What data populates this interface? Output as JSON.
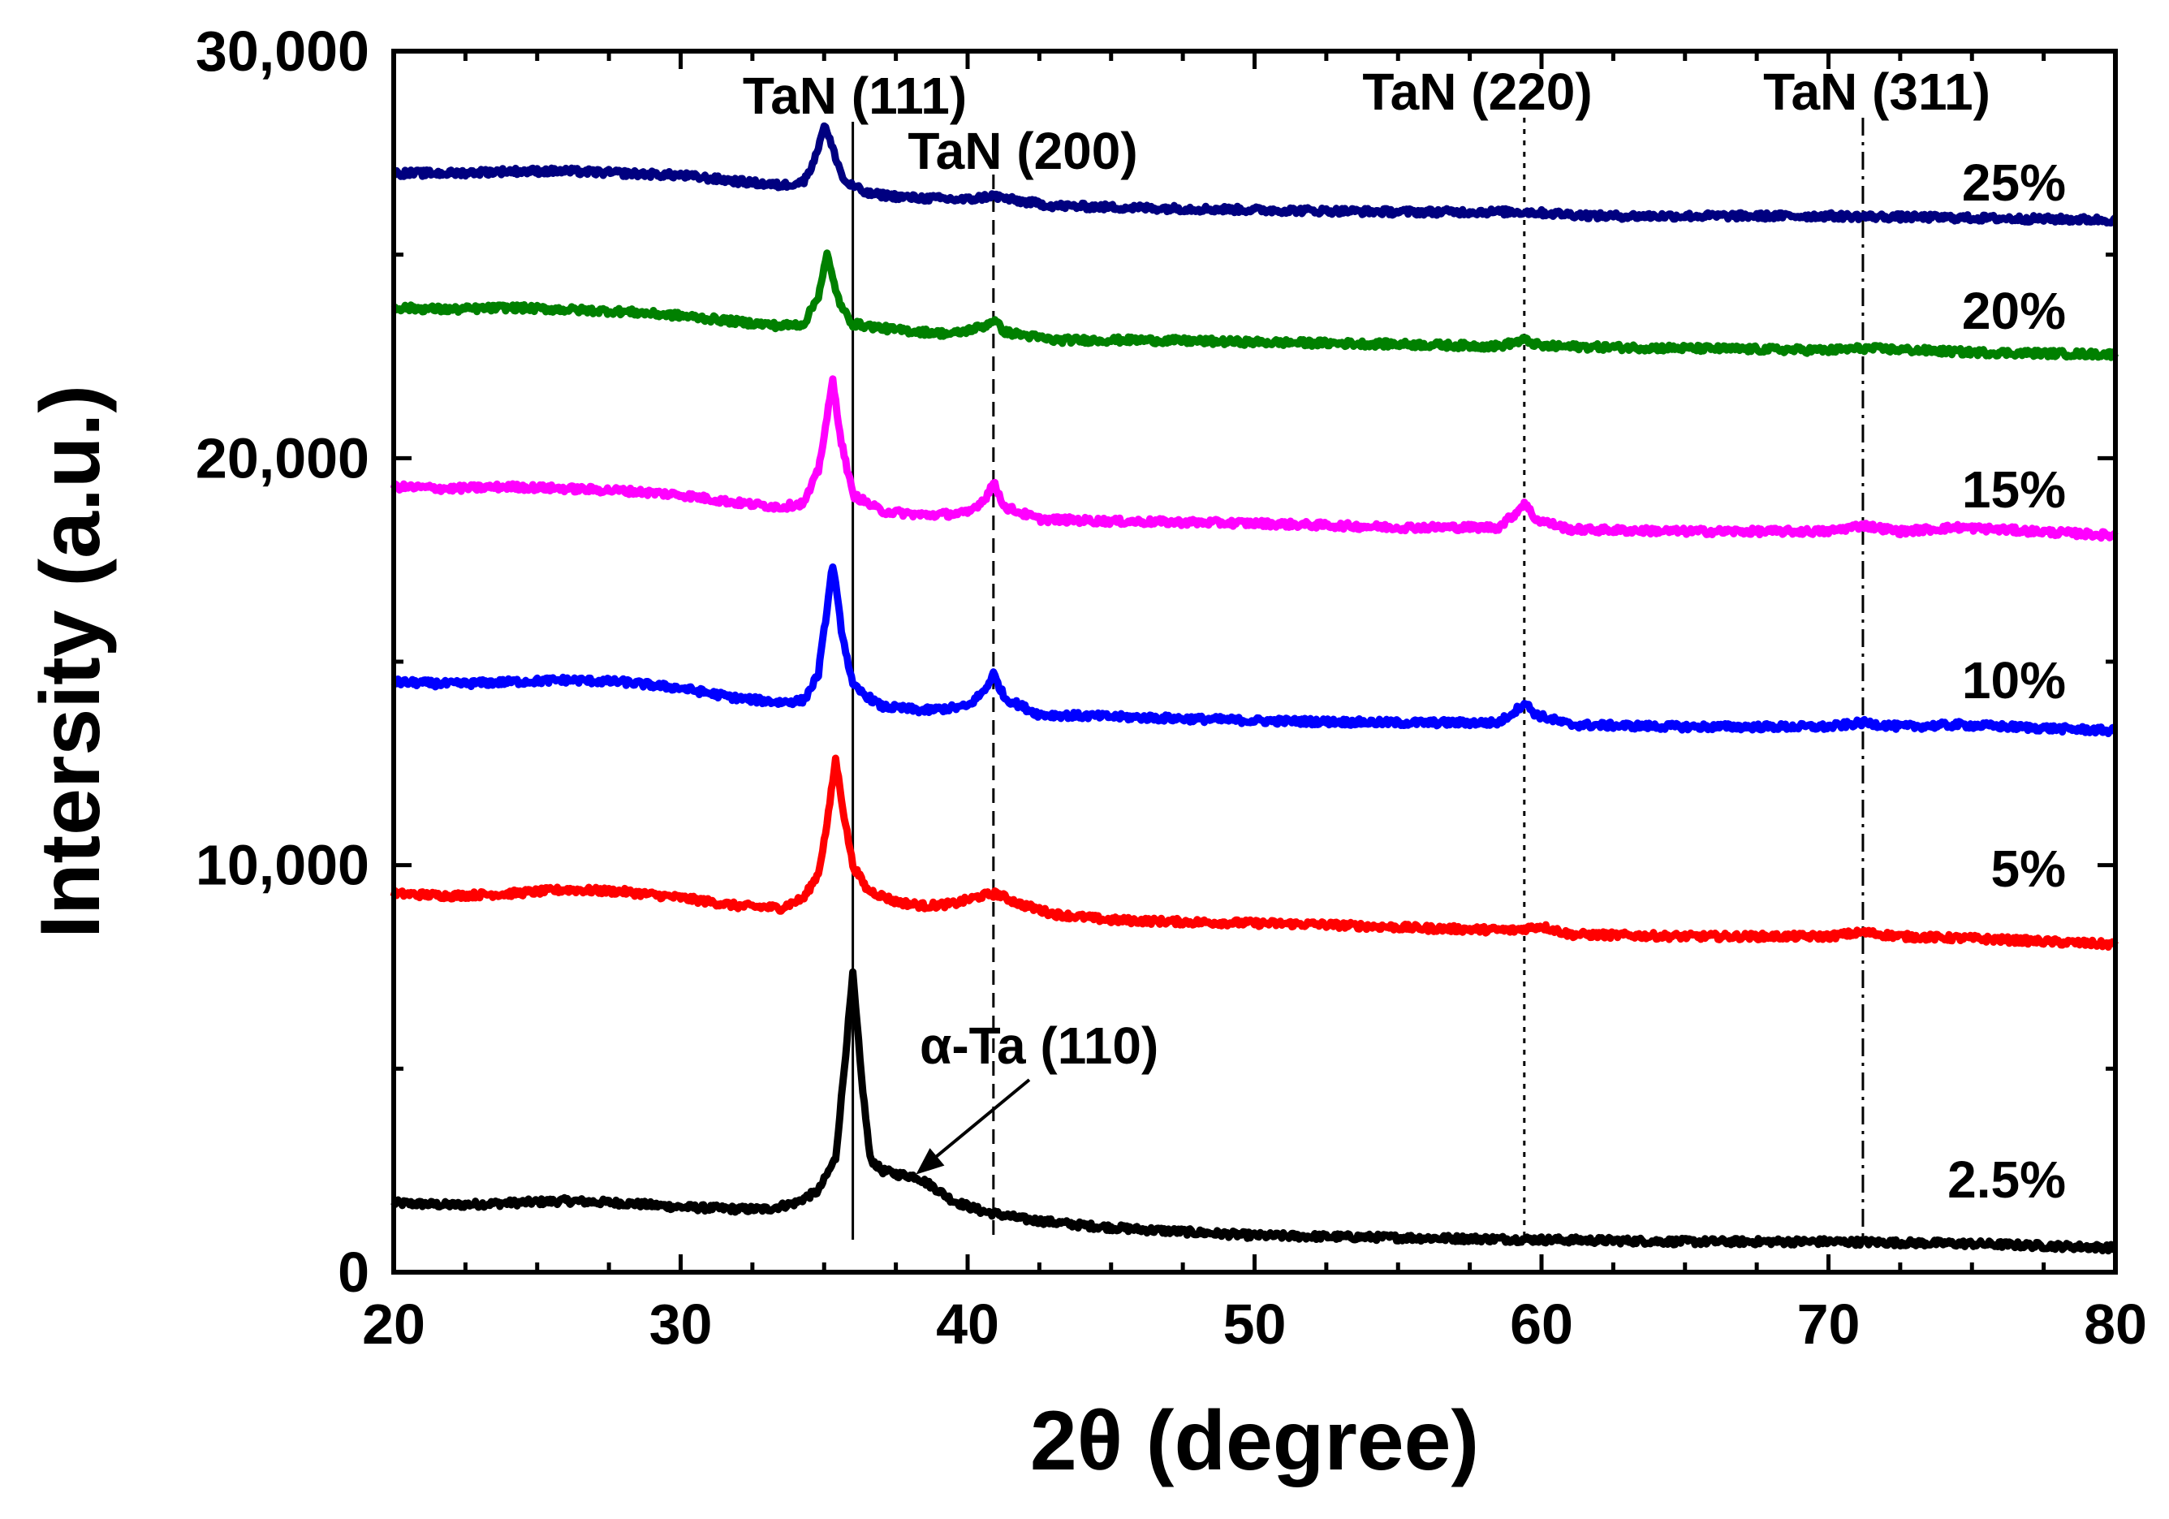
{
  "chart_data": {
    "type": "line",
    "title": "",
    "xlabel": "2θ (degree)",
    "ylabel": "Intersity (a.u.)",
    "xlim": [
      20,
      80
    ],
    "ylim": [
      0,
      30000
    ],
    "x_ticks": [
      20,
      30,
      40,
      50,
      60,
      70,
      80
    ],
    "x_tick_labels": [
      "20",
      "30",
      "40",
      "50",
      "60",
      "70",
      "80"
    ],
    "y_ticks": [
      0,
      10000,
      20000,
      30000
    ],
    "y_tick_labels": [
      "0",
      "10,000",
      "20,000",
      "30,000"
    ],
    "reference_lines": [
      {
        "label": "TaN (111)",
        "x": 36.0,
        "style": "solid"
      },
      {
        "label": "TaN (200)",
        "x": 40.9,
        "style": "dashed"
      },
      {
        "label": "TaN (220)",
        "x": 59.4,
        "style": "dotted"
      },
      {
        "label": "TaN (311)",
        "x": 71.2,
        "style": "dashdot"
      }
    ],
    "annotations": [
      {
        "text": "α-Ta (110)",
        "points_to_x": 38.2,
        "points_to_y": 2400
      }
    ],
    "series": [
      {
        "name": "2.5%",
        "color": "#000000",
        "base": 1700,
        "points": [
          [
            20,
            1700
          ],
          [
            22,
            1650
          ],
          [
            24,
            1700
          ],
          [
            26,
            1750
          ],
          [
            28,
            1700
          ],
          [
            30,
            1600
          ],
          [
            32,
            1550
          ],
          [
            33,
            1550
          ],
          [
            34,
            1700
          ],
          [
            34.8,
            2000
          ],
          [
            35.4,
            2800
          ],
          [
            35.7,
            5000
          ],
          [
            36.0,
            7300
          ],
          [
            36.3,
            4800
          ],
          [
            36.6,
            2800
          ],
          [
            37,
            2500
          ],
          [
            37.6,
            2400
          ],
          [
            38.2,
            2350
          ],
          [
            38.8,
            2100
          ],
          [
            39.5,
            1750
          ],
          [
            40.5,
            1500
          ],
          [
            42,
            1300
          ],
          [
            44,
            1150
          ],
          [
            46,
            1050
          ],
          [
            50,
            900
          ],
          [
            55,
            850
          ],
          [
            60,
            800
          ],
          [
            65,
            750
          ],
          [
            70,
            750
          ],
          [
            75,
            700
          ],
          [
            80,
            600
          ]
        ]
      },
      {
        "name": "5%",
        "color": "#ff0000",
        "base": 9300,
        "points": [
          [
            20,
            9300
          ],
          [
            22,
            9250
          ],
          [
            24,
            9300
          ],
          [
            26,
            9400
          ],
          [
            28,
            9350
          ],
          [
            30,
            9200
          ],
          [
            32,
            9000
          ],
          [
            33.5,
            8950
          ],
          [
            34.3,
            9200
          ],
          [
            34.8,
            9800
          ],
          [
            35.1,
            11000
          ],
          [
            35.4,
            12600
          ],
          [
            35.7,
            11200
          ],
          [
            36,
            10000
          ],
          [
            36.5,
            9400
          ],
          [
            37.5,
            9100
          ],
          [
            38.5,
            9000
          ],
          [
            39.5,
            9050
          ],
          [
            40.5,
            9250
          ],
          [
            41,
            9300
          ],
          [
            41.8,
            9050
          ],
          [
            43,
            8800
          ],
          [
            45,
            8650
          ],
          [
            48,
            8600
          ],
          [
            52,
            8550
          ],
          [
            56,
            8450
          ],
          [
            59,
            8400
          ],
          [
            60,
            8500
          ],
          [
            61,
            8300
          ],
          [
            65,
            8250
          ],
          [
            70,
            8250
          ],
          [
            71.2,
            8350
          ],
          [
            72.5,
            8250
          ],
          [
            75,
            8200
          ],
          [
            80,
            8050
          ]
        ]
      },
      {
        "name": "10%",
        "color": "#0000ff",
        "base": 14500,
        "points": [
          [
            20,
            14500
          ],
          [
            22,
            14450
          ],
          [
            24,
            14500
          ],
          [
            26,
            14550
          ],
          [
            28,
            14500
          ],
          [
            30,
            14350
          ],
          [
            32,
            14100
          ],
          [
            33.5,
            14000
          ],
          [
            34.3,
            14050
          ],
          [
            34.8,
            14700
          ],
          [
            35.1,
            16300
          ],
          [
            35.3,
            17400
          ],
          [
            35.6,
            15800
          ],
          [
            36,
            14400
          ],
          [
            37,
            13900
          ],
          [
            38.5,
            13800
          ],
          [
            40,
            13900
          ],
          [
            40.6,
            14300
          ],
          [
            40.9,
            14700
          ],
          [
            41.3,
            14100
          ],
          [
            42.5,
            13700
          ],
          [
            45,
            13650
          ],
          [
            50,
            13550
          ],
          [
            55,
            13500
          ],
          [
            58.5,
            13500
          ],
          [
            59.1,
            13800
          ],
          [
            59.4,
            14000
          ],
          [
            59.8,
            13700
          ],
          [
            61,
            13450
          ],
          [
            65,
            13400
          ],
          [
            70,
            13400
          ],
          [
            71.2,
            13500
          ],
          [
            72.5,
            13400
          ],
          [
            74.5,
            13450
          ],
          [
            80,
            13300
          ]
        ]
      },
      {
        "name": "15%",
        "color": "#ff00ff",
        "base": 19300,
        "points": [
          [
            20,
            19300
          ],
          [
            22,
            19250
          ],
          [
            24,
            19300
          ],
          [
            26,
            19250
          ],
          [
            28,
            19200
          ],
          [
            30,
            19100
          ],
          [
            32,
            18900
          ],
          [
            33.5,
            18800
          ],
          [
            34.3,
            18900
          ],
          [
            34.8,
            19700
          ],
          [
            35.1,
            21000
          ],
          [
            35.3,
            21900
          ],
          [
            35.6,
            20400
          ],
          [
            36,
            19100
          ],
          [
            37,
            18700
          ],
          [
            38.5,
            18600
          ],
          [
            40,
            18650
          ],
          [
            40.6,
            19000
          ],
          [
            40.9,
            19400
          ],
          [
            41.3,
            18800
          ],
          [
            42.5,
            18500
          ],
          [
            45,
            18450
          ],
          [
            50,
            18400
          ],
          [
            55,
            18300
          ],
          [
            58.5,
            18300
          ],
          [
            59.1,
            18650
          ],
          [
            59.4,
            18900
          ],
          [
            59.8,
            18500
          ],
          [
            61,
            18250
          ],
          [
            65,
            18200
          ],
          [
            70,
            18200
          ],
          [
            71.2,
            18350
          ],
          [
            72.5,
            18200
          ],
          [
            74.5,
            18300
          ],
          [
            80,
            18100
          ]
        ]
      },
      {
        "name": "20%",
        "color": "#008000",
        "base": 23700,
        "points": [
          [
            20,
            23700
          ],
          [
            22,
            23650
          ],
          [
            24,
            23700
          ],
          [
            26,
            23650
          ],
          [
            28,
            23600
          ],
          [
            30,
            23500
          ],
          [
            32,
            23350
          ],
          [
            33.5,
            23250
          ],
          [
            34.3,
            23300
          ],
          [
            34.8,
            24000
          ],
          [
            35.1,
            25000
          ],
          [
            35.3,
            24400
          ],
          [
            35.6,
            23700
          ],
          [
            36,
            23300
          ],
          [
            37.5,
            23150
          ],
          [
            39.5,
            23050
          ],
          [
            40.6,
            23250
          ],
          [
            40.9,
            23400
          ],
          [
            41.3,
            23100
          ],
          [
            43,
            22900
          ],
          [
            46,
            22900
          ],
          [
            50,
            22850
          ],
          [
            55,
            22800
          ],
          [
            58.5,
            22750
          ],
          [
            59.4,
            22900
          ],
          [
            60,
            22750
          ],
          [
            65,
            22700
          ],
          [
            70,
            22650
          ],
          [
            71.2,
            22700
          ],
          [
            75,
            22600
          ],
          [
            80,
            22550
          ]
        ]
      },
      {
        "name": "25%",
        "color": "#000080",
        "base": 27000,
        "points": [
          [
            20,
            27000
          ],
          [
            22,
            27000
          ],
          [
            24,
            27050
          ],
          [
            26,
            27050
          ],
          [
            28,
            27000
          ],
          [
            30,
            26950
          ],
          [
            32,
            26800
          ],
          [
            33.5,
            26700
          ],
          [
            34.3,
            26800
          ],
          [
            34.7,
            27400
          ],
          [
            35.0,
            28200
          ],
          [
            35.3,
            27600
          ],
          [
            35.7,
            26800
          ],
          [
            36.5,
            26500
          ],
          [
            38,
            26400
          ],
          [
            40,
            26350
          ],
          [
            40.9,
            26450
          ],
          [
            41.5,
            26350
          ],
          [
            43,
            26200
          ],
          [
            46,
            26150
          ],
          [
            50,
            26100
          ],
          [
            55,
            26050
          ],
          [
            59.4,
            26050
          ],
          [
            62,
            25950
          ],
          [
            66,
            25950
          ],
          [
            70,
            25950
          ],
          [
            75,
            25900
          ],
          [
            80,
            25850
          ]
        ]
      }
    ]
  }
}
